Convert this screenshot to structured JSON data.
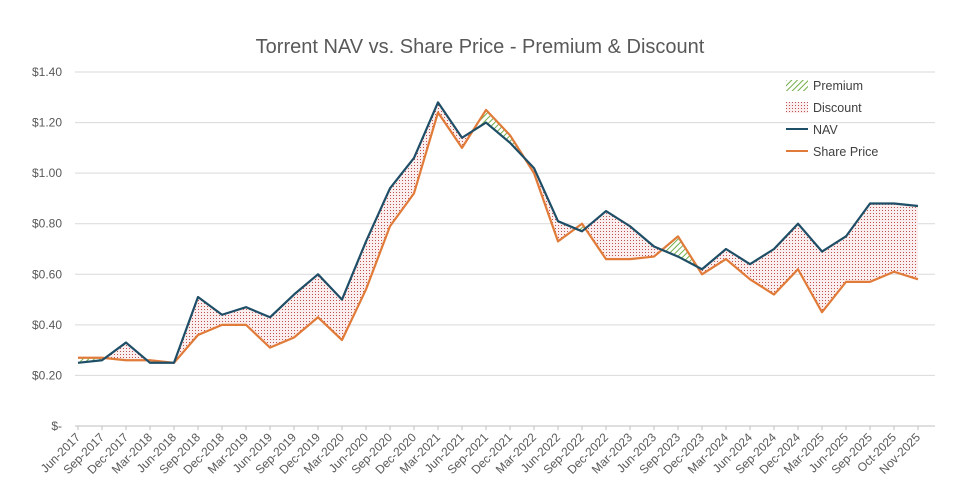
{
  "chart_data": {
    "type": "line",
    "title": "Torrent NAV vs. Share Price - Premium & Discount",
    "xlabel": "",
    "ylabel": "",
    "ylim": [
      0,
      1.4
    ],
    "y_ticks": [
      "$-",
      "$0.20",
      "$0.40",
      "$0.60",
      "$0.80",
      "$1.00",
      "$1.20",
      "$1.40"
    ],
    "grid": true,
    "legend_position": "top-right",
    "categories": [
      "Jun-2017",
      "Sep-2017",
      "Dec-2017",
      "Mar-2018",
      "Jun-2018",
      "Sep-2018",
      "Dec-2018",
      "Mar-2019",
      "Jun-2019",
      "Sep-2019",
      "Dec-2019",
      "Mar-2020",
      "Jun-2020",
      "Sep-2020",
      "Dec-2020",
      "Mar-2021",
      "Jun-2021",
      "Sep-2021",
      "Dec-2021",
      "Mar-2022",
      "Jun-2022",
      "Sep-2022",
      "Dec-2022",
      "Mar-2023",
      "Jun-2023",
      "Sep-2023",
      "Dec-2023",
      "Mar-2024",
      "Jun-2024",
      "Sep-2024",
      "Dec-2024",
      "Mar-2025",
      "Jun-2025",
      "Sep-2025",
      "Oct-2025",
      "Nov-2025"
    ],
    "series": [
      {
        "name": "NAV",
        "color": "#1F4E67",
        "values": [
          0.25,
          0.26,
          0.33,
          0.25,
          0.25,
          0.51,
          0.44,
          0.47,
          0.43,
          0.52,
          0.6,
          0.5,
          0.73,
          0.94,
          1.06,
          1.28,
          1.14,
          1.2,
          1.12,
          1.02,
          0.81,
          0.77,
          0.85,
          0.79,
          0.71,
          0.67,
          0.62,
          0.7,
          0.64,
          0.7,
          0.8,
          0.69,
          0.75,
          0.88,
          0.88,
          0.87
        ]
      },
      {
        "name": "Share Price",
        "color": "#E07B39",
        "values": [
          0.27,
          0.27,
          0.26,
          0.26,
          0.25,
          0.36,
          0.4,
          0.4,
          0.31,
          0.35,
          0.43,
          0.34,
          0.54,
          0.79,
          0.92,
          1.24,
          1.1,
          1.25,
          1.15,
          1.0,
          0.73,
          0.8,
          0.66,
          0.66,
          0.67,
          0.75,
          0.6,
          0.66,
          0.58,
          0.52,
          0.62,
          0.45,
          0.57,
          0.57,
          0.61,
          0.58
        ]
      }
    ],
    "areas": [
      {
        "name": "Premium",
        "color": "#70AD47",
        "pattern": "diagonal-hatch"
      },
      {
        "name": "Discount",
        "color": "#C0504D",
        "pattern": "dots"
      }
    ]
  }
}
